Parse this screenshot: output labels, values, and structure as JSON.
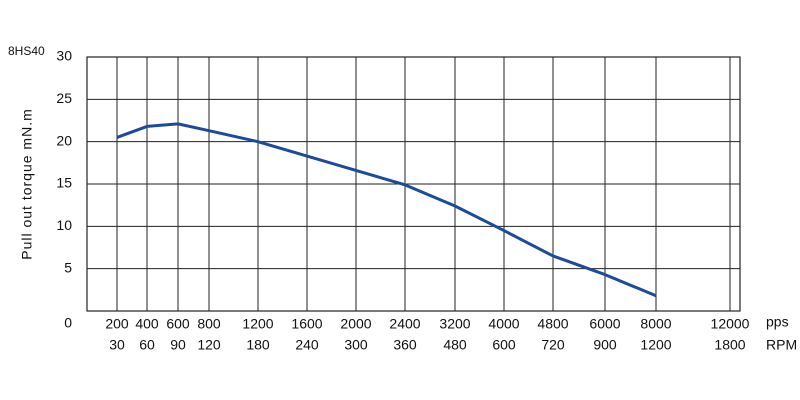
{
  "chart_data": {
    "type": "line",
    "title": "8HS40",
    "y_label": "Pull out torque mN.m",
    "x_unit": "pps",
    "x2_unit": "RPM",
    "categories": [
      "200",
      "400",
      "600",
      "800",
      "1200",
      "1600",
      "2000",
      "2400",
      "3200",
      "4000",
      "4800",
      "6000",
      "8000",
      "12000"
    ],
    "secondary_categories": [
      "30",
      "60",
      "90",
      "120",
      "180",
      "240",
      "300",
      "360",
      "480",
      "600",
      "720",
      "900",
      "1200",
      "1800"
    ],
    "series": [
      {
        "name": "8HS40",
        "color": "#1c4b9b",
        "values": [
          20.5,
          21.8,
          22.1,
          21.3,
          20.0,
          18.3,
          16.6,
          14.9,
          12.4,
          9.5,
          6.5,
          4.3,
          1.8,
          null
        ]
      }
    ],
    "ylim": [
      0,
      30
    ],
    "yticks": [
      0,
      5,
      10,
      15,
      20,
      25,
      30
    ],
    "grid": true
  }
}
